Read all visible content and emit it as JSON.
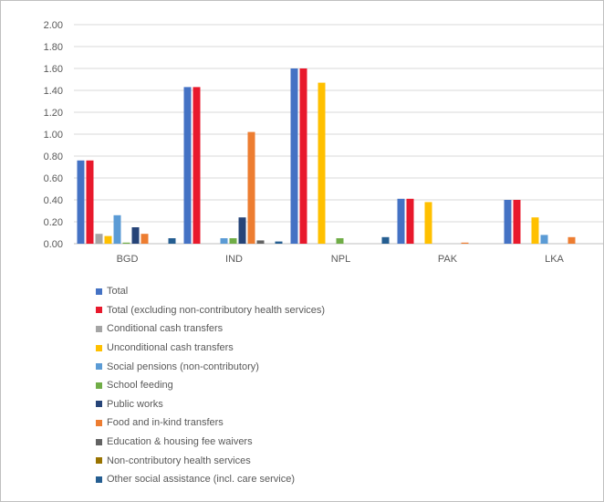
{
  "chart_data": {
    "type": "bar",
    "categories": [
      "BGD",
      "IND",
      "NPL",
      "PAK",
      "LKA"
    ],
    "ylim": [
      0,
      2.0
    ],
    "yticks": [
      "0.00",
      "0.20",
      "0.40",
      "0.60",
      "0.80",
      "1.00",
      "1.20",
      "1.40",
      "1.60",
      "1.80",
      "2.00"
    ],
    "grid": true,
    "legend_position": "bottom",
    "series": [
      {
        "name": "Total",
        "color": "#4472c4",
        "values": [
          0.76,
          1.43,
          1.6,
          0.41,
          0.4
        ]
      },
      {
        "name": "Total (excluding non-contributory health services)",
        "color": "#e8192c",
        "values": [
          0.76,
          1.43,
          1.6,
          0.41,
          0.4
        ]
      },
      {
        "name": "Conditional cash transfers",
        "color": "#a5a5a5",
        "values": [
          0.09,
          0,
          0,
          0,
          0
        ]
      },
      {
        "name": "Unconditional cash transfers",
        "color": "#ffc000",
        "values": [
          0.07,
          0,
          1.47,
          0.38,
          0.24
        ]
      },
      {
        "name": "Social pensions (non-contributory)",
        "color": "#5b9bd5",
        "values": [
          0.26,
          0.05,
          0,
          0,
          0.08
        ]
      },
      {
        "name": "School feeding",
        "color": "#70ad47",
        "values": [
          0.01,
          0.05,
          0.05,
          0,
          0
        ]
      },
      {
        "name": "Public works",
        "color": "#264478",
        "values": [
          0.15,
          0.24,
          0,
          0,
          0
        ]
      },
      {
        "name": "Food and in-kind transfers",
        "color": "#ed7d31",
        "values": [
          0.09,
          1.02,
          0,
          0.01,
          0.06
        ]
      },
      {
        "name": "Education & housing fee waivers",
        "color": "#636363",
        "values": [
          0,
          0.03,
          0,
          0,
          0
        ]
      },
      {
        "name": "Non-contributory health services",
        "color": "#997300",
        "values": [
          0,
          0,
          0,
          0,
          0
        ]
      },
      {
        "name": "Other social assistance (incl. care service)",
        "color": "#255e91",
        "values": [
          0.05,
          0.02,
          0.06,
          0,
          0
        ]
      }
    ]
  }
}
